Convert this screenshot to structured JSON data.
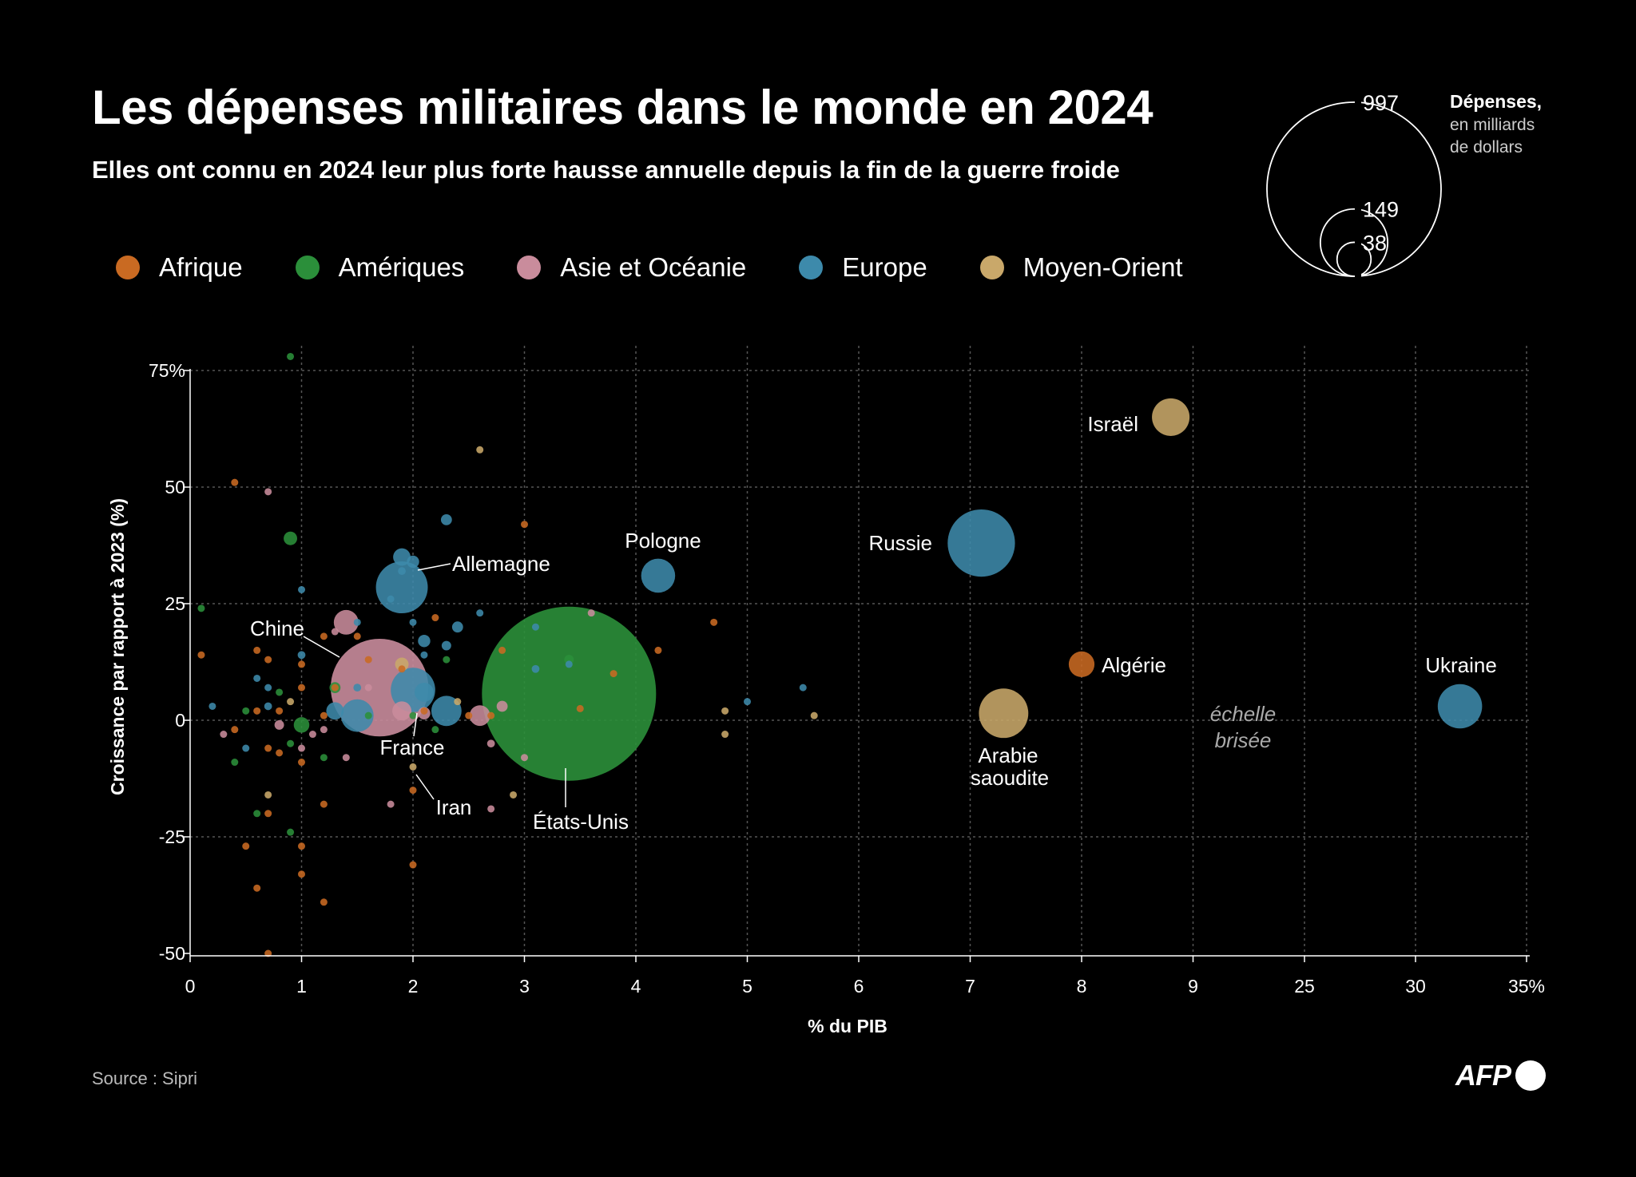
{
  "header": {
    "title": "Les dépenses militaires dans le monde en 2024",
    "subtitle": "Elles ont connu en 2024 leur plus forte hausse annuelle depuis la fin de la guerre froide"
  },
  "colors": {
    "Afrique": "#c96a22",
    "Amériques": "#2b8f3a",
    "Asie et Océanie": "#c98c9c",
    "Europe": "#3d8aab",
    "Moyen-Orient": "#c9a86a"
  },
  "size_legend": {
    "title": "Dépenses,",
    "subtitle_line1": "en milliards",
    "subtitle_line2": "de dollars",
    "values": [
      997,
      149,
      38
    ],
    "labels": [
      "997",
      "149",
      "38"
    ]
  },
  "source": "Source : Sipri",
  "logo": "AFP",
  "chart_data": {
    "type": "scatter",
    "xlabel": "% du PIB",
    "ylabel": "Croissance par rapport à 2023 (%)",
    "x_scale": "broken",
    "x_segments": [
      [
        0,
        9
      ],
      [
        25,
        35
      ]
    ],
    "x_ticks": [
      0,
      1,
      2,
      3,
      4,
      5,
      6,
      7,
      8,
      9,
      25,
      30,
      35
    ],
    "x_tick_labels": [
      "0",
      "1",
      "2",
      "3",
      "4",
      "5",
      "6",
      "7",
      "8",
      "9",
      "25",
      "30",
      "35%"
    ],
    "y_ticks": [
      -50,
      -25,
      0,
      25,
      50,
      75
    ],
    "y_tick_labels": [
      "-50",
      "-25",
      "0",
      "25",
      "50",
      "75%"
    ],
    "ylim": [
      -50,
      80
    ],
    "grid": true,
    "legend": {
      "placement": "top",
      "entries": [
        "Afrique",
        "Amériques",
        "Asie et Océanie",
        "Europe",
        "Moyen-Orient"
      ]
    },
    "broken_scale_note": [
      "échelle",
      "brisée"
    ],
    "labels": {
      "usa": "États-Unis",
      "china": "Chine",
      "russia": "Russie",
      "germany": "Allemagne",
      "poland": "Pologne",
      "israel": "Israël",
      "algeria": "Algérie",
      "ukraine": "Ukraine",
      "saudi1": "Arabie",
      "saudi2": "saoudite",
      "france": "France",
      "iran": "Iran"
    },
    "series": [
      {
        "name": "Afrique",
        "points": [
          {
            "x": 8.0,
            "y": 12,
            "v": 21.8
          },
          {
            "x": 0.4,
            "y": 51,
            "v": 0.3
          },
          {
            "x": 3.0,
            "y": 42,
            "v": 0.4
          },
          {
            "x": 0.1,
            "y": 14,
            "v": 0.4
          },
          {
            "x": 0.6,
            "y": 15,
            "v": 0.3
          },
          {
            "x": 0.7,
            "y": 13,
            "v": 0.5
          },
          {
            "x": 1.0,
            "y": 12,
            "v": 0.5
          },
          {
            "x": 1.2,
            "y": 18,
            "v": 0.5
          },
          {
            "x": 1.5,
            "y": 18,
            "v": 0.3
          },
          {
            "x": 2.2,
            "y": 22,
            "v": 0.3
          },
          {
            "x": 2.8,
            "y": 15,
            "v": 0.3
          },
          {
            "x": 3.8,
            "y": 10,
            "v": 0.3
          },
          {
            "x": 4.2,
            "y": 15,
            "v": 0.3
          },
          {
            "x": 4.7,
            "y": 21,
            "v": 0.3
          },
          {
            "x": 1.0,
            "y": 7,
            "v": 1.2
          },
          {
            "x": 1.3,
            "y": 7,
            "v": 0.4
          },
          {
            "x": 1.6,
            "y": 13,
            "v": 0.3
          },
          {
            "x": 0.6,
            "y": 2,
            "v": 0.4
          },
          {
            "x": 0.8,
            "y": 2,
            "v": 0.3
          },
          {
            "x": 0.7,
            "y": -6,
            "v": 0.6
          },
          {
            "x": 0.8,
            "y": -7,
            "v": 0.4
          },
          {
            "x": 1.0,
            "y": -9,
            "v": 0.3
          },
          {
            "x": 0.4,
            "y": -2,
            "v": 0.3
          },
          {
            "x": 1.2,
            "y": 1,
            "v": 0.4
          },
          {
            "x": 2.5,
            "y": 1,
            "v": 0.4
          },
          {
            "x": 2.7,
            "y": 1,
            "v": 0.3
          },
          {
            "x": 3.5,
            "y": 2.5,
            "v": 1.5
          },
          {
            "x": 2.0,
            "y": -15,
            "v": 0.3
          },
          {
            "x": 1.2,
            "y": -18,
            "v": 0.3
          },
          {
            "x": 0.7,
            "y": -20,
            "v": 0.3
          },
          {
            "x": 0.5,
            "y": -27,
            "v": 0.3
          },
          {
            "x": 1.0,
            "y": -27,
            "v": 0.3
          },
          {
            "x": 2.0,
            "y": -31,
            "v": 0.3
          },
          {
            "x": 1.0,
            "y": -33,
            "v": 0.3
          },
          {
            "x": 0.6,
            "y": -36,
            "v": 0.3
          },
          {
            "x": 1.2,
            "y": -39,
            "v": 0.3
          },
          {
            "x": 0.7,
            "y": -50,
            "v": 0.3
          },
          {
            "x": 1.9,
            "y": 11,
            "v": 0.3
          },
          {
            "x": 2.1,
            "y": 2,
            "v": 0.5
          }
        ]
      },
      {
        "name": "Amériques",
        "points": [
          {
            "x": 3.4,
            "y": 5.7,
            "v": 997
          },
          {
            "x": 0.9,
            "y": 78,
            "v": 0.3
          },
          {
            "x": 0.9,
            "y": 39,
            "v": 6
          },
          {
            "x": 0.1,
            "y": 24,
            "v": 0.3
          },
          {
            "x": 1.0,
            "y": -1,
            "v": 8
          },
          {
            "x": 1.3,
            "y": 7,
            "v": 4
          },
          {
            "x": 1.6,
            "y": 1,
            "v": 1
          },
          {
            "x": 0.5,
            "y": 2,
            "v": 0.3
          },
          {
            "x": 0.8,
            "y": 6,
            "v": 0.3
          },
          {
            "x": 0.9,
            "y": -5,
            "v": 0.3
          },
          {
            "x": 1.2,
            "y": -8,
            "v": 0.3
          },
          {
            "x": 0.4,
            "y": -9,
            "v": 0.3
          },
          {
            "x": 0.6,
            "y": -20,
            "v": 0.5
          },
          {
            "x": 0.9,
            "y": -24,
            "v": 0.3
          },
          {
            "x": 3.4,
            "y": 13,
            "v": 3
          },
          {
            "x": 2.3,
            "y": 13,
            "v": 0.3
          },
          {
            "x": 2.0,
            "y": 1,
            "v": 0.5
          },
          {
            "x": 2.2,
            "y": -2,
            "v": 0.3
          }
        ]
      },
      {
        "name": "Asie et Océanie",
        "points": [
          {
            "x": 1.7,
            "y": 7,
            "v": 314
          },
          {
            "x": 1.4,
            "y": 21,
            "v": 20
          },
          {
            "x": 0.7,
            "y": 49,
            "v": 0.3
          },
          {
            "x": 1.3,
            "y": 19,
            "v": 1
          },
          {
            "x": 1.9,
            "y": 2,
            "v": 12
          },
          {
            "x": 2.1,
            "y": 1.5,
            "v": 5
          },
          {
            "x": 2.6,
            "y": 1,
            "v": 14
          },
          {
            "x": 2.8,
            "y": 3,
            "v": 4
          },
          {
            "x": 2.7,
            "y": -5,
            "v": 2
          },
          {
            "x": 0.8,
            "y": -1,
            "v": 3
          },
          {
            "x": 1.1,
            "y": -3,
            "v": 1
          },
          {
            "x": 1.2,
            "y": -2,
            "v": 0.5
          },
          {
            "x": 0.3,
            "y": -3,
            "v": 0.3
          },
          {
            "x": 1.4,
            "y": -8,
            "v": 0.3
          },
          {
            "x": 1.0,
            "y": -6,
            "v": 0.3
          },
          {
            "x": 1.8,
            "y": -18,
            "v": 0.3
          },
          {
            "x": 2.7,
            "y": -19,
            "v": 0.3
          },
          {
            "x": 3.0,
            "y": -8,
            "v": 0.3
          },
          {
            "x": 3.6,
            "y": 23,
            "v": 0.3
          },
          {
            "x": 1.6,
            "y": 7,
            "v": 0.3
          }
        ]
      },
      {
        "name": "Europe",
        "points": [
          {
            "x": 7.1,
            "y": 38,
            "v": 149
          },
          {
            "x": 1.9,
            "y": 28.5,
            "v": 88.5
          },
          {
            "x": 4.2,
            "y": 31,
            "v": 38
          },
          {
            "x": 32,
            "y": 3,
            "v": 64.7
          },
          {
            "x": 1.9,
            "y": 35,
            "v": 10
          },
          {
            "x": 2.0,
            "y": 34,
            "v": 5
          },
          {
            "x": 2.3,
            "y": 43,
            "v": 4
          },
          {
            "x": 2.4,
            "y": 20,
            "v": 4
          },
          {
            "x": 2.1,
            "y": 17,
            "v": 5
          },
          {
            "x": 2.3,
            "y": 16,
            "v": 3
          },
          {
            "x": 1.9,
            "y": 32,
            "v": 2
          },
          {
            "x": 1.8,
            "y": 26,
            "v": 1
          },
          {
            "x": 2.1,
            "y": 14,
            "v": 1
          },
          {
            "x": 2.0,
            "y": 6.5,
            "v": 65
          },
          {
            "x": 2.3,
            "y": 2,
            "v": 30
          },
          {
            "x": 1.5,
            "y": 1,
            "v": 35
          },
          {
            "x": 2.1,
            "y": 6,
            "v": 12
          },
          {
            "x": 1.3,
            "y": 2,
            "v": 10
          },
          {
            "x": 1.5,
            "y": 7,
            "v": 2
          },
          {
            "x": 1.0,
            "y": 14,
            "v": 2
          },
          {
            "x": 0.7,
            "y": 3,
            "v": 2
          },
          {
            "x": 0.2,
            "y": 3,
            "v": 0.5
          },
          {
            "x": 0.5,
            "y": -6,
            "v": 0.3
          },
          {
            "x": 0.6,
            "y": 9,
            "v": 0.5
          },
          {
            "x": 0.7,
            "y": 7,
            "v": 0.3
          },
          {
            "x": 1.5,
            "y": 21,
            "v": 0.5
          },
          {
            "x": 1.0,
            "y": 28,
            "v": 0.3
          },
          {
            "x": 2.6,
            "y": 23,
            "v": 0.3
          },
          {
            "x": 3.1,
            "y": 20,
            "v": 0.5
          },
          {
            "x": 3.1,
            "y": 11,
            "v": 2
          },
          {
            "x": 3.4,
            "y": 12,
            "v": 0.3
          },
          {
            "x": 5.0,
            "y": 4,
            "v": 0.5
          },
          {
            "x": 5.5,
            "y": 7,
            "v": 0.3
          },
          {
            "x": 2.0,
            "y": 21,
            "v": 0.3
          }
        ]
      },
      {
        "name": "Moyen-Orient",
        "points": [
          {
            "x": 8.8,
            "y": 65,
            "v": 46.5
          },
          {
            "x": 7.3,
            "y": 1.5,
            "v": 80.3
          },
          {
            "x": 2.0,
            "y": -10,
            "v": 1
          },
          {
            "x": 1.9,
            "y": 12,
            "v": 6
          },
          {
            "x": 2.4,
            "y": 4,
            "v": 1.5
          },
          {
            "x": 4.8,
            "y": -3,
            "v": 1
          },
          {
            "x": 4.8,
            "y": 2,
            "v": 0.3
          },
          {
            "x": 5.6,
            "y": 1,
            "v": 0.8
          },
          {
            "x": 2.6,
            "y": 58,
            "v": 0.3
          },
          {
            "x": 2.9,
            "y": -16,
            "v": 0.3
          },
          {
            "x": 0.7,
            "y": -16,
            "v": 0.3
          },
          {
            "x": 0.9,
            "y": 4,
            "v": 0.5
          }
        ]
      }
    ]
  }
}
